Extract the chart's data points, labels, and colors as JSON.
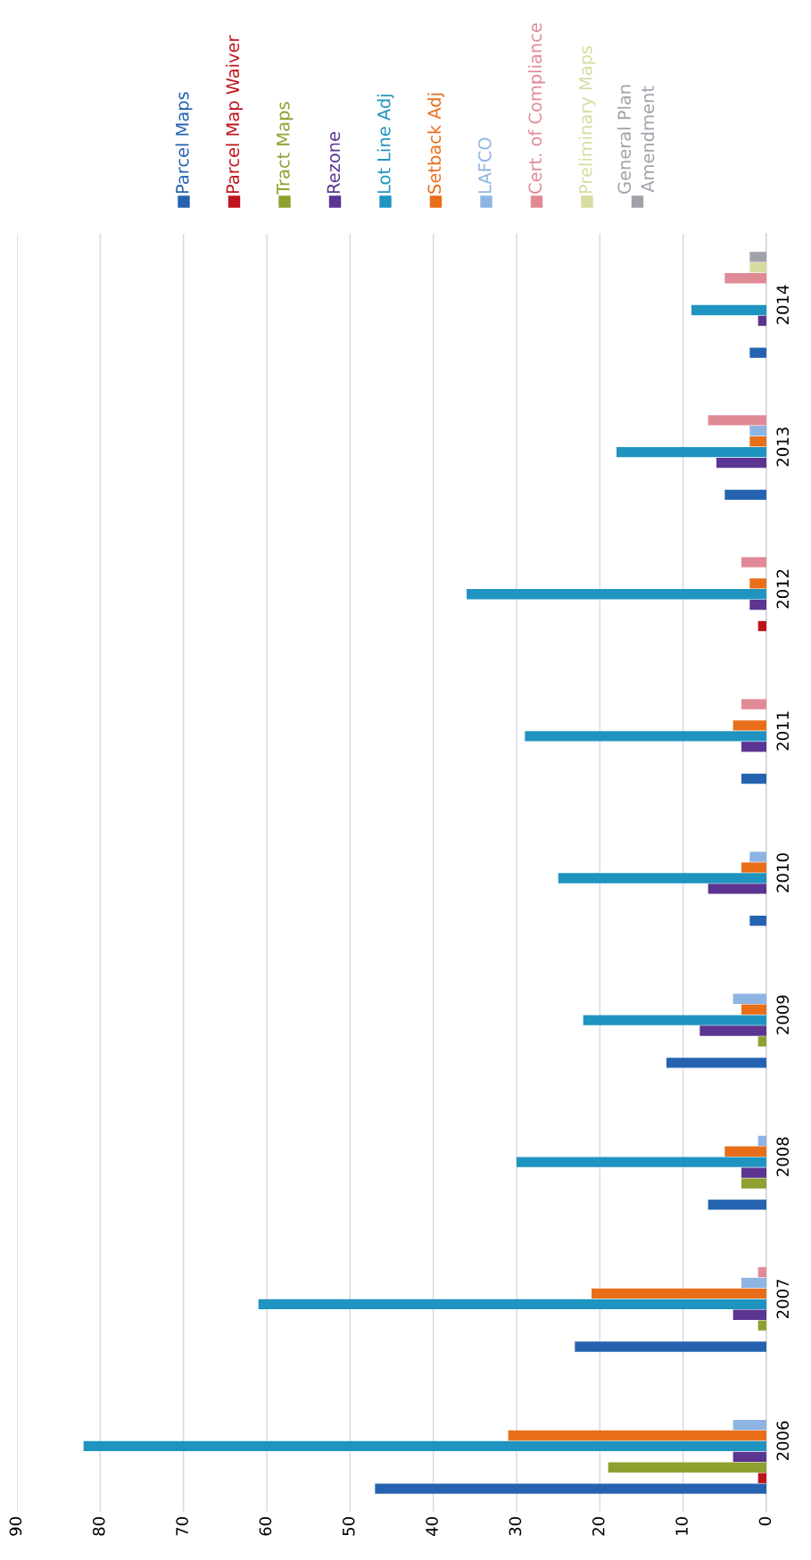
{
  "chart_data": {
    "type": "bar",
    "orientation": "horizontal",
    "categories": [
      "2014",
      "2013",
      "2012",
      "2011",
      "2010",
      "2009",
      "2008",
      "2007",
      "2006"
    ],
    "series": [
      {
        "name": "Parcel Maps",
        "color": "#2563b0",
        "values": [
          2,
          5,
          0,
          3,
          2,
          12,
          7,
          23,
          47
        ]
      },
      {
        "name": "Parcel Map Waiver",
        "color": "#c0141c",
        "values": [
          0,
          0,
          1,
          0,
          0,
          0,
          0,
          0,
          1
        ]
      },
      {
        "name": "Tract Maps",
        "color": "#8fa030",
        "values": [
          0,
          0,
          0,
          0,
          0,
          1,
          3,
          1,
          19
        ]
      },
      {
        "name": "Rezone",
        "color": "#5b3591",
        "values": [
          1,
          6,
          2,
          3,
          7,
          8,
          3,
          4,
          4
        ]
      },
      {
        "name": "Lot Line Adj",
        "color": "#1f94c0",
        "values": [
          9,
          18,
          36,
          29,
          25,
          22,
          30,
          61,
          82
        ]
      },
      {
        "name": "Setback Adj",
        "color": "#e86e1a",
        "values": [
          0,
          2,
          2,
          4,
          3,
          3,
          5,
          21,
          31
        ]
      },
      {
        "name": "LAFCO",
        "color": "#8eb4e3",
        "values": [
          0,
          2,
          0,
          0,
          2,
          4,
          1,
          3,
          4
        ]
      },
      {
        "name": "Cert. of Compliance",
        "color": "#e08a96",
        "values": [
          5,
          7,
          3,
          3,
          0,
          0,
          0,
          1,
          0
        ]
      },
      {
        "name": "Preliminary Maps",
        "color": "#d8dba0",
        "values": [
          2,
          0,
          0,
          0,
          0,
          0,
          0,
          0,
          0
        ]
      },
      {
        "name": "General Plan\nAmendment",
        "color": "#a0a2aa",
        "values": [
          2,
          0,
          0,
          0,
          0,
          0,
          0,
          0,
          0
        ]
      }
    ],
    "xlim": [
      90,
      0
    ],
    "xticks": [
      0,
      10,
      20,
      30,
      40,
      50,
      60,
      70,
      80,
      90
    ],
    "grid": "x",
    "legend": "top"
  }
}
